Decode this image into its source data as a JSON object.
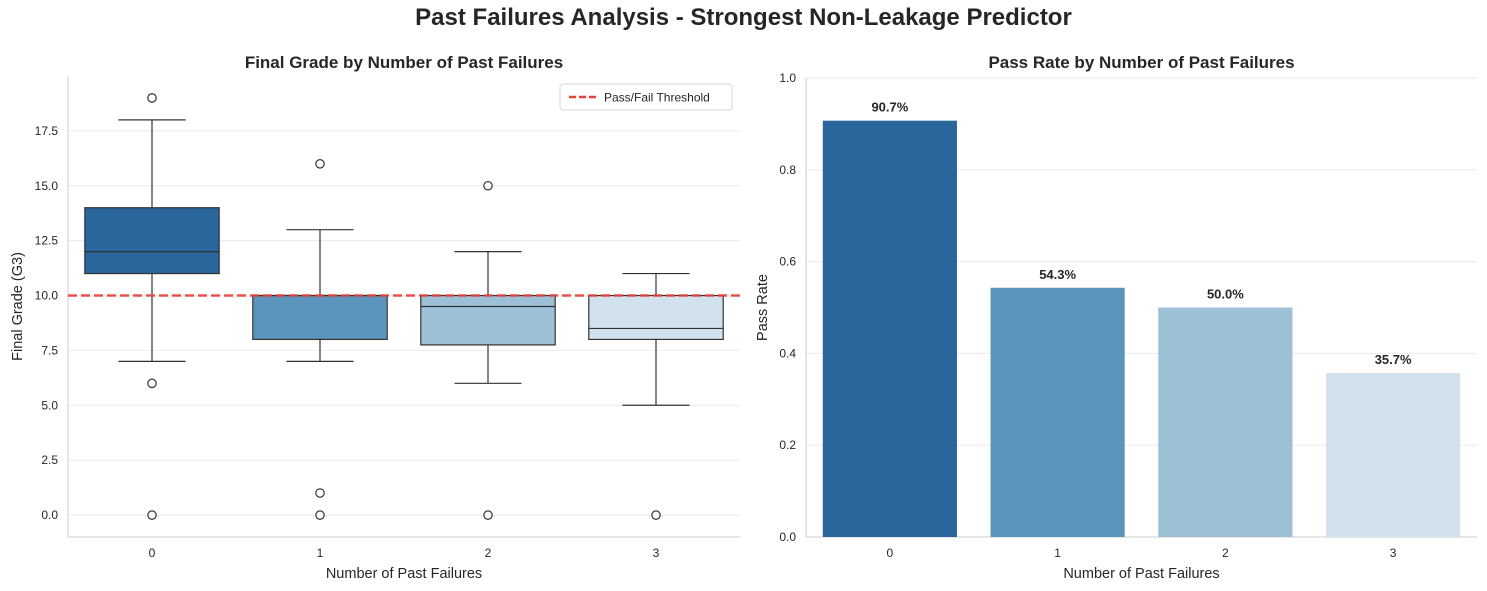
{
  "suptitle": "Past Failures Analysis - Strongest Non-Leakage Predictor",
  "chart_data": [
    {
      "type": "box",
      "title": "Final Grade by Number of Past Failures",
      "xlabel": "Number of Past Failures",
      "ylabel": "Final Grade (G3)",
      "categories": [
        "0",
        "1",
        "2",
        "3"
      ],
      "ylim": [
        -1,
        20
      ],
      "yticks": [
        0.0,
        2.5,
        5.0,
        7.5,
        10.0,
        12.5,
        15.0,
        17.5
      ],
      "ytick_labels": [
        "0.0",
        "2.5",
        "5.0",
        "7.5",
        "10.0",
        "12.5",
        "15.0",
        "17.5"
      ],
      "grid": "horizontal",
      "legend_position": "top-right",
      "reference_line": {
        "label": "Pass/Fail Threshold",
        "y": 10,
        "color": "#e8413c",
        "style": "dashed"
      },
      "boxes": [
        {
          "category": "0",
          "whisker_low": 7,
          "q1": 11,
          "median": 12,
          "q3": 14,
          "whisker_high": 18,
          "outliers": [
            19,
            6,
            0
          ],
          "color": "#2a659b"
        },
        {
          "category": "1",
          "whisker_low": 7,
          "q1": 8,
          "median": 10,
          "q3": 10,
          "whisker_high": 13,
          "outliers": [
            16,
            1,
            0
          ],
          "color": "#5c95bb"
        },
        {
          "category": "2",
          "whisker_low": 6,
          "q1": 7.75,
          "median": 9.5,
          "q3": 10,
          "whisker_high": 12,
          "outliers": [
            15,
            0
          ],
          "color": "#9cc1d6"
        },
        {
          "category": "3",
          "whisker_low": 5,
          "q1": 8,
          "median": 8.5,
          "q3": 10,
          "whisker_high": 11,
          "outliers": [
            0
          ],
          "color": "#d2e1ee"
        }
      ]
    },
    {
      "type": "bar",
      "title": "Pass Rate by Number of Past Failures",
      "xlabel": "Number of Past Failures",
      "ylabel": "Pass Rate",
      "categories": [
        "0",
        "1",
        "2",
        "3"
      ],
      "values": [
        0.907,
        0.543,
        0.5,
        0.357
      ],
      "data_labels": [
        "90.7%",
        "54.3%",
        "50.0%",
        "35.7%"
      ],
      "colors": [
        "#2a659b",
        "#5c95bb",
        "#9cc1d6",
        "#d2e1ee"
      ],
      "ylim": [
        0,
        1.0
      ],
      "yticks": [
        0.0,
        0.2,
        0.4,
        0.6,
        0.8,
        1.0
      ],
      "ytick_labels": [
        "0.0",
        "0.2",
        "0.4",
        "0.6",
        "0.8",
        "1.0"
      ],
      "grid": "horizontal"
    }
  ]
}
